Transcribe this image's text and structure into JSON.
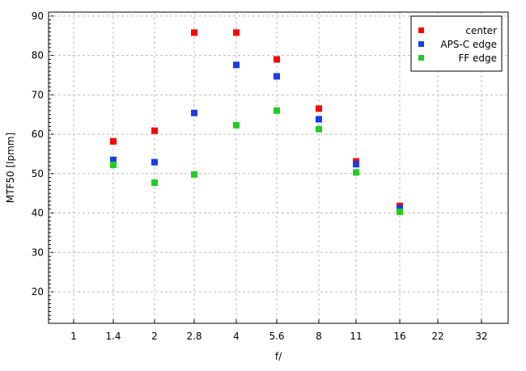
{
  "chart_data": {
    "type": "scatter",
    "title": "",
    "xlabel": "f/",
    "ylabel": "MTF50 [lpmm]",
    "x_scale": "log",
    "categories": [
      "1",
      "1.4",
      "2",
      "2.8",
      "4",
      "5.6",
      "8",
      "11",
      "16",
      "22",
      "32"
    ],
    "ylim": [
      12,
      91
    ],
    "yticks": [
      20,
      30,
      40,
      50,
      60,
      70,
      80,
      90
    ],
    "grid": true,
    "legend_position": "top-right",
    "series": [
      {
        "name": "center",
        "color": "#ff0000",
        "x": [
          "1.4",
          "2",
          "2.8",
          "4",
          "5.6",
          "8",
          "11",
          "16"
        ],
        "values": [
          58.2,
          60.9,
          85.8,
          85.8,
          79.0,
          66.5,
          53.1,
          41.8
        ]
      },
      {
        "name": "APS-C edge",
        "color": "#1a3de8",
        "x": [
          "1.4",
          "2",
          "2.8",
          "4",
          "5.6",
          "8",
          "11",
          "16"
        ],
        "values": [
          53.5,
          52.9,
          65.4,
          77.6,
          74.7,
          63.8,
          52.4,
          41.2
        ]
      },
      {
        "name": "FF edge",
        "color": "#22cc22",
        "x": [
          "1.4",
          "2",
          "2.8",
          "4",
          "5.6",
          "8",
          "11",
          "16"
        ],
        "values": [
          52.2,
          47.7,
          49.8,
          62.3,
          66.0,
          61.3,
          50.3,
          40.3
        ]
      }
    ]
  }
}
